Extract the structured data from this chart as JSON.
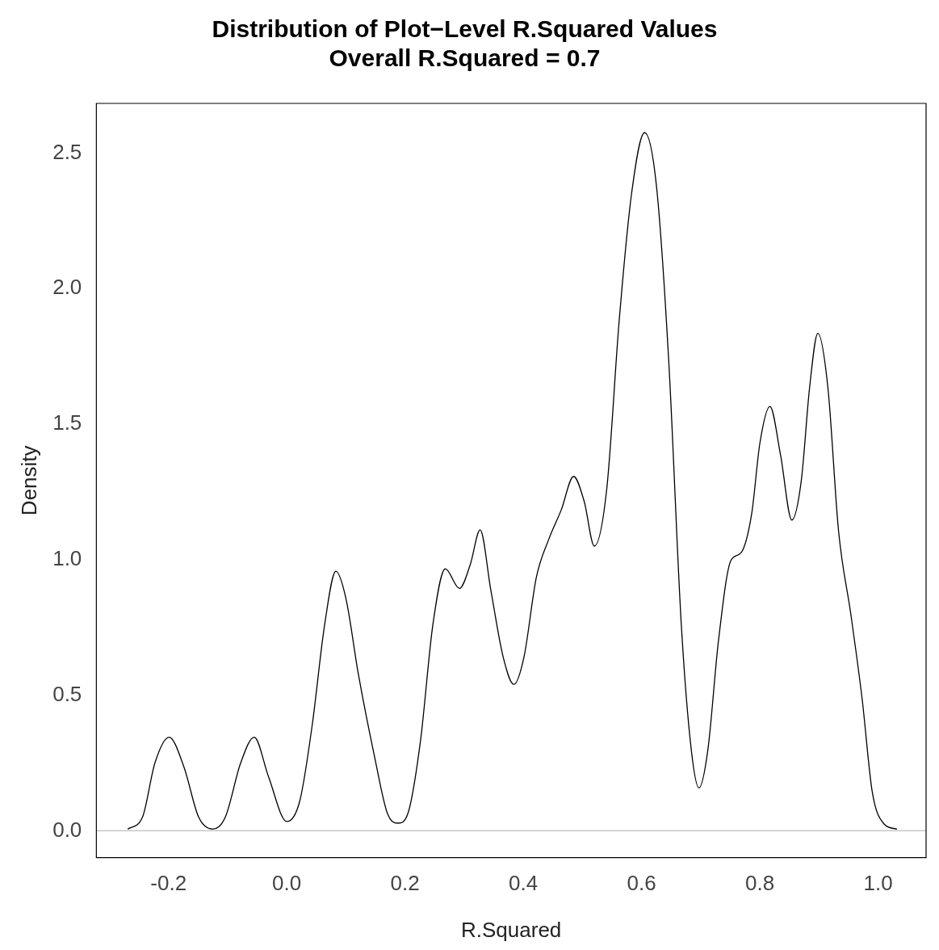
{
  "chart_data": {
    "type": "line",
    "title": "Distribution of Plot−Level R.Squared Values",
    "subtitle": "Overall R.Squared = 0.7",
    "xlabel": "R.Squared",
    "ylabel": "Density",
    "x": [
      -0.269,
      -0.244,
      -0.223,
      -0.199,
      -0.174,
      -0.149,
      -0.125,
      -0.104,
      -0.078,
      -0.055,
      -0.031,
      0.0,
      0.022,
      0.043,
      0.064,
      0.083,
      0.1,
      0.121,
      0.149,
      0.17,
      0.188,
      0.205,
      0.226,
      0.247,
      0.268,
      0.292,
      0.31,
      0.327,
      0.345,
      0.366,
      0.384,
      0.401,
      0.422,
      0.443,
      0.464,
      0.485,
      0.503,
      0.52,
      0.541,
      0.562,
      0.583,
      0.605,
      0.625,
      0.646,
      0.667,
      0.684,
      0.697,
      0.712,
      0.73,
      0.751,
      0.768,
      0.786,
      0.8,
      0.817,
      0.835,
      0.854,
      0.87,
      0.884,
      0.898,
      0.915,
      0.933,
      0.954,
      0.973,
      0.99,
      1.01,
      1.032
    ],
    "series": [
      {
        "color": "#000000",
        "values": [
          0.006,
          0.05,
          0.25,
          0.345,
          0.236,
          0.05,
          0.006,
          0.05,
          0.25,
          0.345,
          0.2,
          0.034,
          0.11,
          0.39,
          0.76,
          0.957,
          0.857,
          0.578,
          0.267,
          0.065,
          0.028,
          0.065,
          0.33,
          0.76,
          0.966,
          0.894,
          0.98,
          1.11,
          0.888,
          0.64,
          0.54,
          0.64,
          0.935,
          1.075,
          1.183,
          1.307,
          1.214,
          1.05,
          1.26,
          1.88,
          2.35,
          2.575,
          2.38,
          1.727,
          0.764,
          0.298,
          0.158,
          0.298,
          0.702,
          0.997,
          1.025,
          1.168,
          1.43,
          1.565,
          1.385,
          1.146,
          1.292,
          1.634,
          1.835,
          1.634,
          1.106,
          0.795,
          0.484,
          0.143,
          0.025,
          0.006
        ]
      }
    ],
    "xlim": [
      -0.322,
      1.081
    ],
    "xticks": [
      -0.2,
      {
        "value": 0,
        "label": "0.0"
      },
      0.2,
      0.4,
      0.6,
      0.8,
      {
        "value": 1,
        "label": "1.0"
      }
    ],
    "ylim": [
      -0.099,
      2.683
    ],
    "yticks": [
      {
        "value": 0,
        "label": "0.0"
      },
      0.5,
      {
        "value": 1,
        "label": "1.0"
      },
      1.5,
      {
        "value": 2,
        "label": "2.0"
      },
      2.5
    ],
    "ref_lines": [
      {
        "axis": "y",
        "value": 0,
        "color": "#bebebe"
      }
    ],
    "grid": false,
    "legend": false,
    "marker": "none",
    "line_style": "solid"
  }
}
